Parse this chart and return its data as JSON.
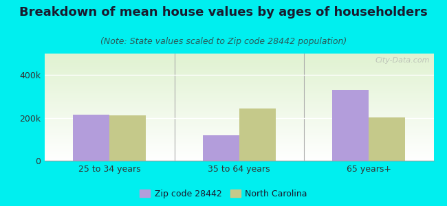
{
  "title": "Breakdown of mean house values by ages of householders",
  "subtitle": "(Note: State values scaled to Zip code 28442 population)",
  "categories": [
    "25 to 34 years",
    "35 to 64 years",
    "65 years+"
  ],
  "zip_values": [
    215000,
    120000,
    330000
  ],
  "nc_values": [
    213000,
    245000,
    203000
  ],
  "zip_color": "#b39ddb",
  "nc_color": "#c5c98a",
  "ylim": [
    0,
    500000
  ],
  "yticks": [
    0,
    200000,
    400000
  ],
  "ytick_labels": [
    "0",
    "200k",
    "400k"
  ],
  "bg_color": "#00efef",
  "watermark": "City-Data.com",
  "bar_width": 0.28,
  "title_fontsize": 13,
  "subtitle_fontsize": 9,
  "tick_fontsize": 9,
  "legend_fontsize": 9,
  "title_color": "#1a1a2e",
  "subtitle_color": "#2a5a5a",
  "tick_color": "#333333"
}
